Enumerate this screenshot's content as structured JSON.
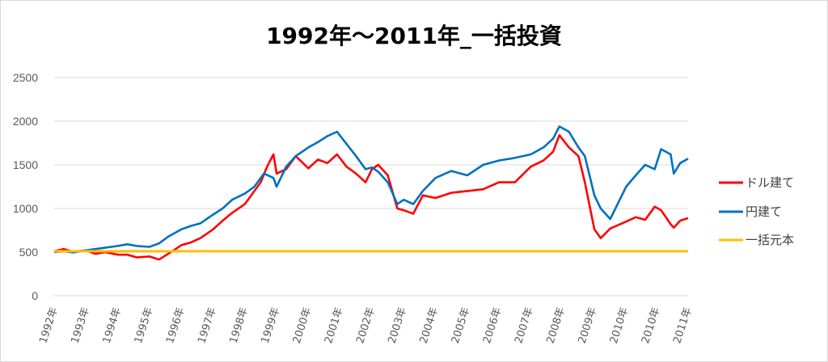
{
  "chart_data": {
    "type": "line",
    "title": "1992年～2011年_一括投資",
    "xlabel": "",
    "ylabel": "",
    "ylim": [
      0,
      2500
    ],
    "yticks": [
      "0",
      "500",
      "1000",
      "1500",
      "2000",
      "2500"
    ],
    "ytick_values": [
      0,
      500,
      1000,
      1500,
      2000,
      2500
    ],
    "xlim": [
      1992.0,
      2011.95
    ],
    "xticks": [
      "1992年",
      "1993年",
      "1994年",
      "1995年",
      "1996年",
      "1997年",
      "1998年",
      "1999年",
      "2000年",
      "2001年",
      "2002年",
      "2003年",
      "2004年",
      "2005年",
      "2006年",
      "2007年",
      "2008年",
      "2009年",
      "2010年",
      "2010年",
      "2011年"
    ],
    "grid": true,
    "legend_position": "right",
    "series": [
      {
        "name": "ドル建て",
        "color": "#ff0000",
        "x": [
          1992.0,
          1992.3,
          1992.6,
          1993.0,
          1993.3,
          1993.6,
          1994.0,
          1994.3,
          1994.6,
          1995.0,
          1995.3,
          1995.5,
          1995.8,
          1996.0,
          1996.3,
          1996.6,
          1997.0,
          1997.3,
          1997.6,
          1998.0,
          1998.3,
          1998.5,
          1998.7,
          1998.9,
          1999.0,
          1999.3,
          1999.6,
          2000.0,
          2000.3,
          2000.6,
          2000.9,
          2001.2,
          2001.5,
          2001.8,
          2002.0,
          2002.2,
          2002.5,
          2002.8,
          2003.0,
          2003.3,
          2003.6,
          2004.0,
          2004.5,
          2005.0,
          2005.5,
          2006.0,
          2006.5,
          2007.0,
          2007.4,
          2007.7,
          2007.9,
          2008.2,
          2008.5,
          2008.7,
          2009.0,
          2009.2,
          2009.5,
          2010.0,
          2010.3,
          2010.6,
          2010.9,
          2011.1,
          2011.4,
          2011.5,
          2011.7,
          2011.95
        ],
        "values": [
          510,
          535,
          505,
          520,
          480,
          500,
          470,
          470,
          440,
          450,
          415,
          460,
          530,
          580,
          610,
          660,
          760,
          860,
          950,
          1050,
          1200,
          1300,
          1480,
          1620,
          1400,
          1450,
          1600,
          1460,
          1560,
          1520,
          1620,
          1480,
          1400,
          1300,
          1450,
          1500,
          1380,
          1000,
          980,
          940,
          1150,
          1120,
          1180,
          1200,
          1220,
          1300,
          1300,
          1480,
          1550,
          1650,
          1840,
          1700,
          1600,
          1300,
          760,
          660,
          770,
          850,
          900,
          870,
          1020,
          980,
          820,
          780,
          860,
          890
        ]
      },
      {
        "name": "円建て",
        "color": "#0070c0",
        "x": [
          1992.0,
          1992.3,
          1992.6,
          1993.0,
          1993.3,
          1993.6,
          1994.0,
          1994.3,
          1994.6,
          1995.0,
          1995.3,
          1995.6,
          1996.0,
          1996.3,
          1996.6,
          1997.0,
          1997.3,
          1997.6,
          1998.0,
          1998.3,
          1998.6,
          1998.9,
          1999.0,
          1999.3,
          1999.6,
          2000.0,
          2000.3,
          2000.6,
          2000.9,
          2001.2,
          2001.5,
          2001.8,
          2002.0,
          2002.2,
          2002.5,
          2002.8,
          2003.0,
          2003.3,
          2003.6,
          2004.0,
          2004.5,
          2005.0,
          2005.5,
          2006.0,
          2006.5,
          2007.0,
          2007.4,
          2007.7,
          2007.9,
          2008.2,
          2008.5,
          2008.7,
          2009.0,
          2009.2,
          2009.5,
          2010.0,
          2010.3,
          2010.6,
          2010.9,
          2011.1,
          2011.4,
          2011.5,
          2011.7,
          2011.95
        ],
        "values": [
          500,
          510,
          495,
          520,
          535,
          550,
          570,
          590,
          570,
          560,
          600,
          680,
          760,
          800,
          830,
          930,
          1000,
          1100,
          1170,
          1250,
          1400,
          1350,
          1250,
          1480,
          1600,
          1700,
          1760,
          1830,
          1880,
          1740,
          1600,
          1450,
          1470,
          1420,
          1300,
          1050,
          1100,
          1050,
          1200,
          1350,
          1430,
          1380,
          1500,
          1550,
          1580,
          1620,
          1700,
          1800,
          1940,
          1880,
          1700,
          1600,
          1150,
          1000,
          880,
          1250,
          1380,
          1500,
          1450,
          1680,
          1620,
          1400,
          1520,
          1570
        ]
      },
      {
        "name": "一括元本",
        "color": "#ffc000",
        "x": [
          1992.0,
          2011.95
        ],
        "values": [
          510,
          510
        ]
      }
    ]
  }
}
